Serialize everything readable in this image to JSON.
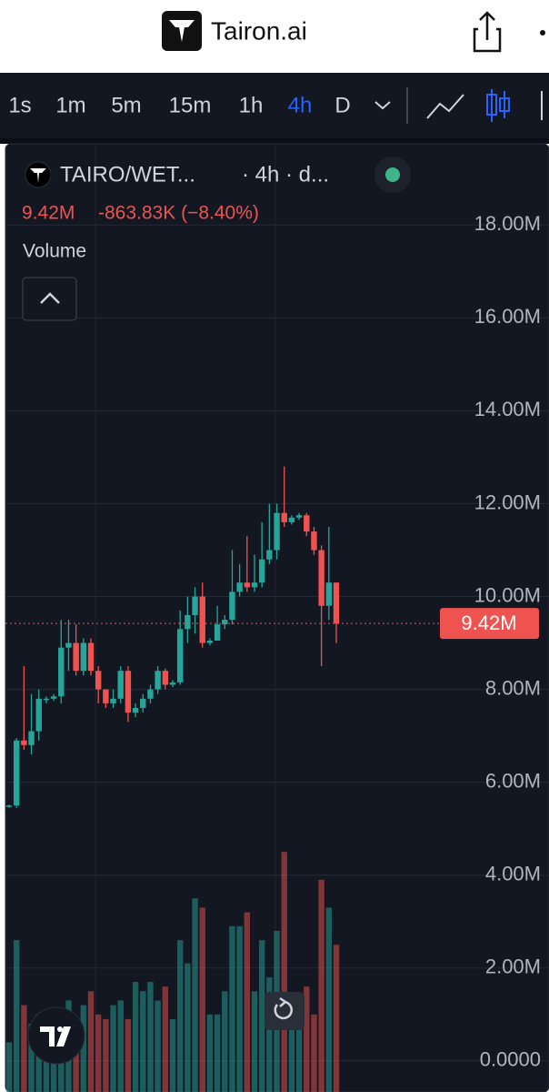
{
  "header": {
    "title": "Tairon.ai"
  },
  "toolbar": {
    "intervals": [
      "1s",
      "1m",
      "5m",
      "15m",
      "1h",
      "4h",
      "D"
    ],
    "active_interval": "4h"
  },
  "legend": {
    "symbol": "TAIRO/WET...",
    "interval": "· 4h · d...",
    "change": "-863.83K (−8.40%)",
    "indicator": "Volume"
  },
  "chart_data": {
    "type": "candlestick",
    "up_color": "#26a69a",
    "down_color": "#ef5350",
    "volume_opacity": 0.5,
    "grid": true,
    "ylim": [
      -0.67,
      19.75
    ],
    "yticks": [
      {
        "value": 0,
        "label": "0.0000"
      },
      {
        "value": 2,
        "label": "2.00M"
      },
      {
        "value": 4,
        "label": "4.00M"
      },
      {
        "value": 6,
        "label": "6.00M"
      },
      {
        "value": 8,
        "label": "8.00M"
      },
      {
        "value": 10,
        "label": "10.00M"
      },
      {
        "value": 12,
        "label": "12.00M"
      },
      {
        "value": 14,
        "label": "14.00M"
      },
      {
        "value": 16,
        "label": "16.00M"
      },
      {
        "value": 18,
        "label": "18.00M"
      }
    ],
    "last_price": {
      "value": 9.42,
      "label": "9.42M"
    },
    "open": [
      5.48,
      5.5,
      6.9,
      6.8,
      7.1,
      7.8,
      7.8,
      7.85,
      8.9,
      9.0,
      8.4,
      9.0,
      8.4,
      8.0,
      7.7,
      7.8,
      8.4,
      7.5,
      7.6,
      7.8,
      8.0,
      8.4,
      8.1,
      8.15,
      9.3,
      9.6,
      10.0,
      9.0,
      9.05,
      9.4,
      9.5,
      10.1,
      10.3,
      10.2,
      10.3,
      10.8,
      11.0,
      11.8,
      11.6,
      11.7,
      11.75,
      11.4,
      11.0,
      9.8,
      10.3
    ],
    "high": [
      5.52,
      6.95,
      8.5,
      7.9,
      8.0,
      7.85,
      7.9,
      9.5,
      9.5,
      9.4,
      9.1,
      9.1,
      8.5,
      8.0,
      8.0,
      8.5,
      8.5,
      7.7,
      7.9,
      8.1,
      8.5,
      8.45,
      8.2,
      9.7,
      10.0,
      10.2,
      10.3,
      9.1,
      9.8,
      9.6,
      11.0,
      10.7,
      11.3,
      10.9,
      11.6,
      12.0,
      12.0,
      12.8,
      11.75,
      11.8,
      11.8,
      11.5,
      11.1,
      11.5,
      10.3
    ],
    "low": [
      5.45,
      5.45,
      6.7,
      6.6,
      6.9,
      7.7,
      7.75,
      7.7,
      8.4,
      8.3,
      8.3,
      8.3,
      7.7,
      7.6,
      7.6,
      7.7,
      7.3,
      7.4,
      7.5,
      7.7,
      7.9,
      8.0,
      8.05,
      8.1,
      9.0,
      9.2,
      8.9,
      8.95,
      9.1,
      9.3,
      9.4,
      10.0,
      10.1,
      10.1,
      10.2,
      10.7,
      10.8,
      11.5,
      11.55,
      11.65,
      11.3,
      10.9,
      8.5,
      9.5,
      9.0
    ],
    "close": [
      5.5,
      6.9,
      6.8,
      7.1,
      7.8,
      7.8,
      7.85,
      8.9,
      9.0,
      8.4,
      9.0,
      8.4,
      8.0,
      7.7,
      7.8,
      8.4,
      7.5,
      7.6,
      7.8,
      8.0,
      8.4,
      8.1,
      8.15,
      9.3,
      9.6,
      10.0,
      9.0,
      9.05,
      9.4,
      9.5,
      10.1,
      10.3,
      10.2,
      10.3,
      10.8,
      11.0,
      11.8,
      11.6,
      11.7,
      11.75,
      11.4,
      11.0,
      9.8,
      10.3,
      9.42
    ],
    "volume": [
      0.4,
      2.6,
      1.2,
      0.8,
      1.0,
      0.9,
      0.8,
      1.1,
      1.3,
      0.9,
      1.2,
      1.5,
      1.0,
      0.9,
      1.2,
      1.3,
      0.9,
      1.7,
      1.5,
      1.7,
      1.3,
      1.6,
      0.9,
      2.6,
      2.1,
      3.5,
      3.3,
      1.0,
      1.0,
      1.5,
      2.9,
      2.9,
      3.2,
      1.5,
      2.6,
      1.8,
      2.8,
      4.5,
      1.3,
      1.0,
      1.6,
      1.0,
      3.9,
      3.3,
      2.5
    ]
  }
}
